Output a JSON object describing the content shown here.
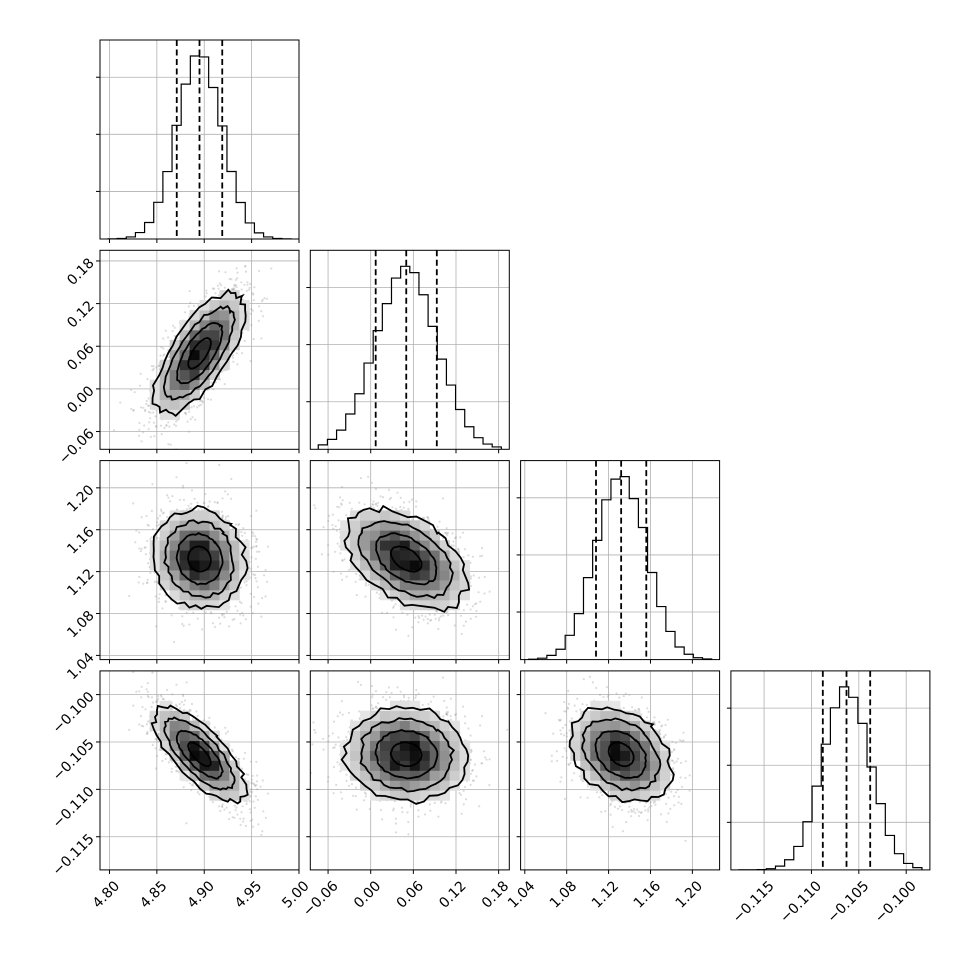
{
  "chart_data": {
    "type": "corner",
    "params": [
      {
        "mean": 4.895,
        "sd": 0.024,
        "q": [
          4.871,
          4.895,
          4.919
        ],
        "range": [
          4.79,
          5.0
        ],
        "ticks": [
          "4.80",
          "4.85",
          "4.90",
          "4.95",
          "5.00"
        ]
      },
      {
        "mean": 0.05,
        "sd": 0.043,
        "q": [
          0.007,
          0.05,
          0.093
        ],
        "range": [
          -0.085,
          0.195
        ],
        "ticks": [
          "−0.06",
          "0.00",
          "0.06",
          "0.12",
          "0.18"
        ]
      },
      {
        "mean": 1.132,
        "sd": 0.024,
        "q": [
          1.108,
          1.132,
          1.156
        ],
        "range": [
          1.036,
          1.226
        ],
        "ticks": [
          "1.04",
          "1.08",
          "1.12",
          "1.16",
          "1.20"
        ]
      },
      {
        "mean": -0.1063,
        "sd": 0.0025,
        "q": [
          -0.1088,
          -0.1063,
          -0.1038
        ],
        "range": [
          -0.1185,
          -0.0975
        ],
        "ticks": [
          "−0.115",
          "−0.110",
          "−0.105",
          "−0.100"
        ]
      }
    ],
    "correlations": [
      {
        "i": 1,
        "j": 0,
        "rho": 0.7
      },
      {
        "i": 2,
        "j": 0,
        "rho": -0.08
      },
      {
        "i": 2,
        "j": 1,
        "rho": -0.45
      },
      {
        "i": 3,
        "j": 0,
        "rho": -0.72
      },
      {
        "i": 3,
        "j": 1,
        "rho": -0.05
      },
      {
        "i": 3,
        "j": 2,
        "rho": -0.3
      }
    ],
    "quantile_lines": [
      0.16,
      0.5,
      0.84
    ],
    "contour_levels_sigma": [
      0.5,
      1.0,
      1.5,
      2.0
    ],
    "grid": true
  }
}
